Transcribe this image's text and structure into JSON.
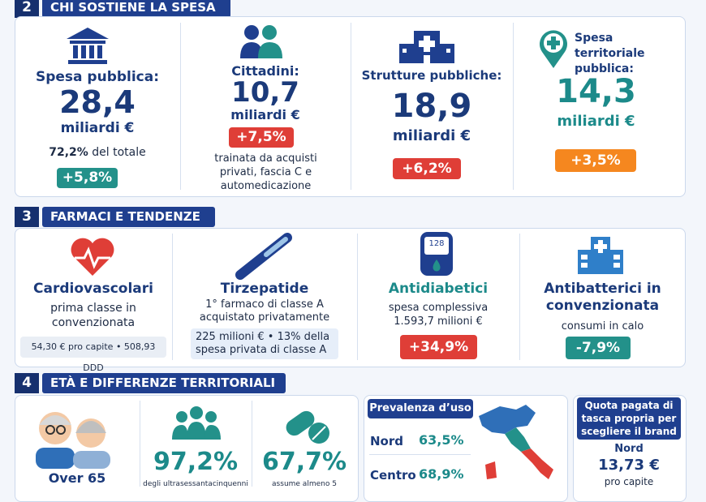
{
  "sections": [
    {
      "number": "2",
      "title": "CHI SOSTIENE LA SPESA",
      "cards": [
        {
          "label": "Spesa pubblica:",
          "value": "28,4",
          "unit": "miliardi €",
          "share": "72,2%",
          "share_note": "del totale",
          "change": "+5,8%"
        },
        {
          "label": "Cittadini:",
          "value": "10,7",
          "unit": "miliardi €",
          "change": "+7,5%",
          "note": "trainata da acquisti privati, fascia C e automedicazione"
        },
        {
          "label": "Strutture pubbliche:",
          "value": "18,9",
          "unit": "miliardi €",
          "change": "+6,2%"
        },
        {
          "label": "Spesa territoriale pubblica:",
          "value": "14,3",
          "unit": "miliardi €",
          "change": "+3,5%"
        }
      ]
    },
    {
      "number": "3",
      "title": "FARMACI E TENDENZE",
      "cards": [
        {
          "title": "Cardiovascolari",
          "text": "prima classe in convenzionata",
          "detail": "54,30 € pro capite • 508,93 DDD"
        },
        {
          "title": "Tirzepatide",
          "text": "1° farmaco di classe A acquistato privatamente",
          "detail": "225 milioni € • 13% della spesa privata di classe A"
        },
        {
          "title": "Antidiabetici",
          "icon_text": "128",
          "text": "spesa complessiva 1.593,7 milioni €",
          "change": "+34,9%"
        },
        {
          "title": "Antibatterici in convenzionata",
          "text": "consumi in calo",
          "change": "-7,9%"
        }
      ]
    },
    {
      "number": "4",
      "title": "ETÀ E DIFFERENZE TERRITORIALI",
      "cards": [
        {
          "title": "Over 65"
        },
        {
          "value": "97,2%",
          "text": "degli ultrasessantacinquenni"
        },
        {
          "value": "67,7%",
          "text": "assume almeno 5"
        },
        {
          "title": "Prevalenza d’uso",
          "rows": [
            {
              "area": "Nord",
              "value": "63,5%"
            },
            {
              "area": "Centro",
              "value": "68,9%"
            }
          ]
        },
        {
          "title": "Quota pagata di tasca propria per scegliere il brand",
          "area": "Nord",
          "value": "13,73 €",
          "unit": "pro capite"
        }
      ]
    }
  ]
}
